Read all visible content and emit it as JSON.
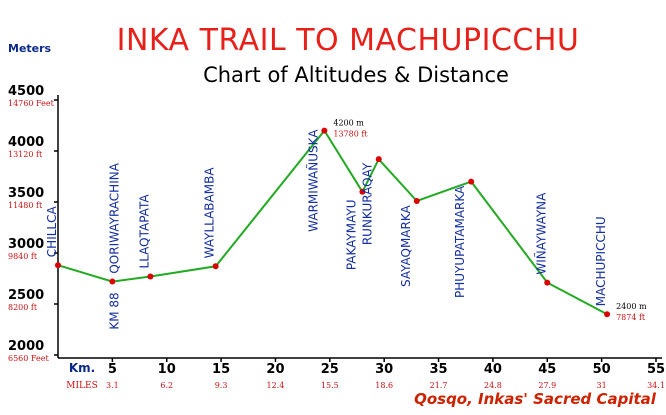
{
  "colors": {
    "title": "#e8201a",
    "line": "#22aa22",
    "point": "#dd0000",
    "site_label": "#1530a0",
    "axis": "#000000",
    "feet_labels": "#cc1111",
    "unit_labels": "#0a2a8a"
  },
  "chart_data": {
    "type": "line",
    "title": "INKA TRAIL TO MACHUPICCHU",
    "subtitle": "Chart of Altitudes & Distance",
    "ylabel": "Meters",
    "xlabel": "Km.",
    "miles_label": "MILES",
    "footer": "Qosqo, Inkas' Sacred Capital",
    "xlim": [
      0,
      55
    ],
    "ylim": [
      2000,
      4500
    ],
    "grid": false,
    "x_ticks": [
      5,
      10,
      15,
      20,
      25,
      30,
      35,
      40,
      45,
      50,
      55
    ],
    "x_tick_labels": [
      "5",
      "10",
      "15",
      "20",
      "25",
      "30",
      "35",
      "40",
      "45",
      "50",
      "55"
    ],
    "miles_tick_labels": [
      "3.1",
      "6.2",
      "9.3",
      "12.4",
      "15.5",
      "18.6",
      "21.7",
      "24.8",
      "27.9",
      "31",
      "34.1"
    ],
    "y_ticks": [
      2000,
      2500,
      3000,
      3500,
      4000,
      4500
    ],
    "y_tick_labels": [
      "2000",
      "2500",
      "3000",
      "3500",
      "4000",
      "4500"
    ],
    "feet_tick_labels": [
      "6560 Feet",
      "8200 ft",
      "9840 ft",
      "11480 ft",
      "13120 ft",
      "14760 Feet"
    ],
    "series": [
      {
        "points": [
          {
            "x": 0,
            "y": 2880,
            "label": "CHILLCA",
            "side": "above"
          },
          {
            "x": 5,
            "y": 2720,
            "label": "KM 88",
            "side": "below"
          },
          {
            "x": 5,
            "y": 2720,
            "label": "QORIWAYRACHINA",
            "side": "above"
          },
          {
            "x": 8.5,
            "y": 2770,
            "label": "LLAQTAPATA",
            "side": "above"
          },
          {
            "x": 14.5,
            "y": 2870,
            "label": "WAYLLABAMBA",
            "side": "above"
          },
          {
            "x": 24.5,
            "y": 4200,
            "label": "WARMIWAÑUSKA",
            "side": "below"
          },
          {
            "x": 28,
            "y": 3600,
            "label": "PAKAYMAYU",
            "side": "below"
          },
          {
            "x": 29.5,
            "y": 3920,
            "label": "RUNKURAQAY",
            "side": "below"
          },
          {
            "x": 33,
            "y": 3510,
            "label": "SAYAQMARKA",
            "side": "below"
          },
          {
            "x": 38,
            "y": 3700,
            "label": "PHUYUPATAMARKA",
            "side": "below"
          },
          {
            "x": 45,
            "y": 2710,
            "label": "WIÑAYWAYNA",
            "side": "above"
          },
          {
            "x": 50.5,
            "y": 2400,
            "label": "MACHUPICCHU",
            "side": "above"
          }
        ]
      }
    ],
    "annotations": [
      {
        "x": 24.5,
        "y": 4200,
        "meters": "4200 m",
        "feet": "13780 ft"
      },
      {
        "x": 50.5,
        "y": 2400,
        "meters": "2400 m",
        "feet": "7874 ft"
      }
    ]
  }
}
